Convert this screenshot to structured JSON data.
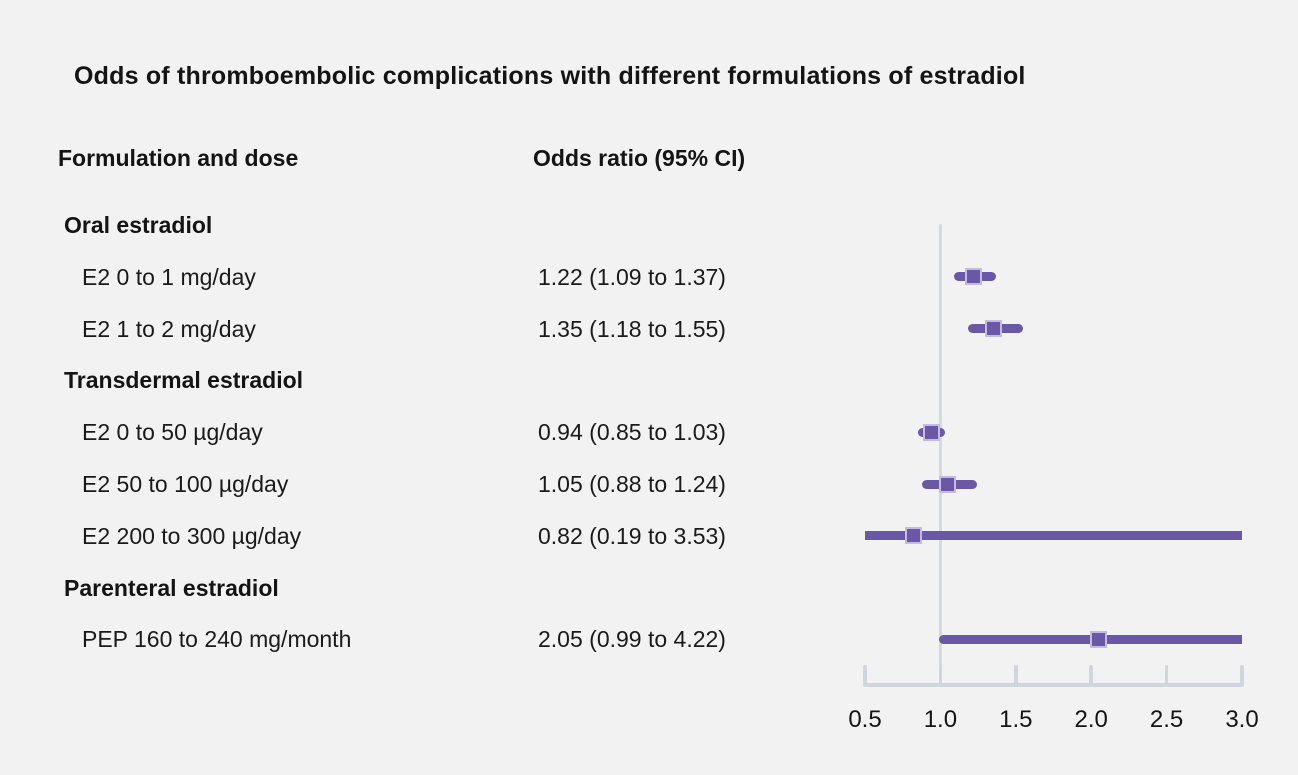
{
  "chart_data": {
    "type": "forest",
    "title": "Odds of thromboembolic complications with different formulations of estradiol",
    "col1_header": "Formulation and dose",
    "col2_header": "Odds ratio (95% CI)",
    "rows": [
      {
        "type": "group",
        "label": "Oral estradiol"
      },
      {
        "type": "item",
        "label": "E2 0 to 1 mg/day",
        "value_text": "1.22 (1.09 to 1.37)",
        "est": 1.22,
        "lo": 1.09,
        "hi": 1.37
      },
      {
        "type": "item",
        "label": "E2 1 to 2 mg/day",
        "value_text": "1.35 (1.18 to 1.55)",
        "est": 1.35,
        "lo": 1.18,
        "hi": 1.55
      },
      {
        "type": "group",
        "label": "Transdermal estradiol"
      },
      {
        "type": "item",
        "label": "E2 0 to 50 µg/day",
        "value_text": "0.94 (0.85 to 1.03)",
        "est": 0.94,
        "lo": 0.85,
        "hi": 1.03
      },
      {
        "type": "item",
        "label": "E2 50 to 100 µg/day",
        "value_text": "1.05 (0.88 to 1.24)",
        "est": 1.05,
        "lo": 0.88,
        "hi": 1.24
      },
      {
        "type": "item",
        "label": "E2 200 to 300 µg/day",
        "value_text": "0.82 (0.19 to 3.53)",
        "est": 0.82,
        "lo": 0.19,
        "hi": 3.53
      },
      {
        "type": "group",
        "label": "Parenteral estradiol"
      },
      {
        "type": "item",
        "label": "PEP 160 to 240 mg/month",
        "value_text": "2.05 (0.99 to 4.22)",
        "est": 2.05,
        "lo": 0.99,
        "hi": 4.22
      }
    ],
    "axis": {
      "min": 0.5,
      "max": 3.0,
      "ticks": [
        0.5,
        1.0,
        1.5,
        2.0,
        2.5,
        3.0
      ],
      "tick_labels": [
        "0.5",
        "1.0",
        "1.5",
        "2.0",
        "2.5",
        "3.0"
      ],
      "reference_value": 1.0
    },
    "legend": null,
    "grid": false,
    "colors": {
      "marker": "#6a58a7",
      "marker_border": "#c4bae4",
      "ci_line": "#6a58a7",
      "reference_line": "#d4d8e0",
      "axis_line": "#d0d5de",
      "background": "#f2f2f2",
      "text": "#141414"
    }
  }
}
